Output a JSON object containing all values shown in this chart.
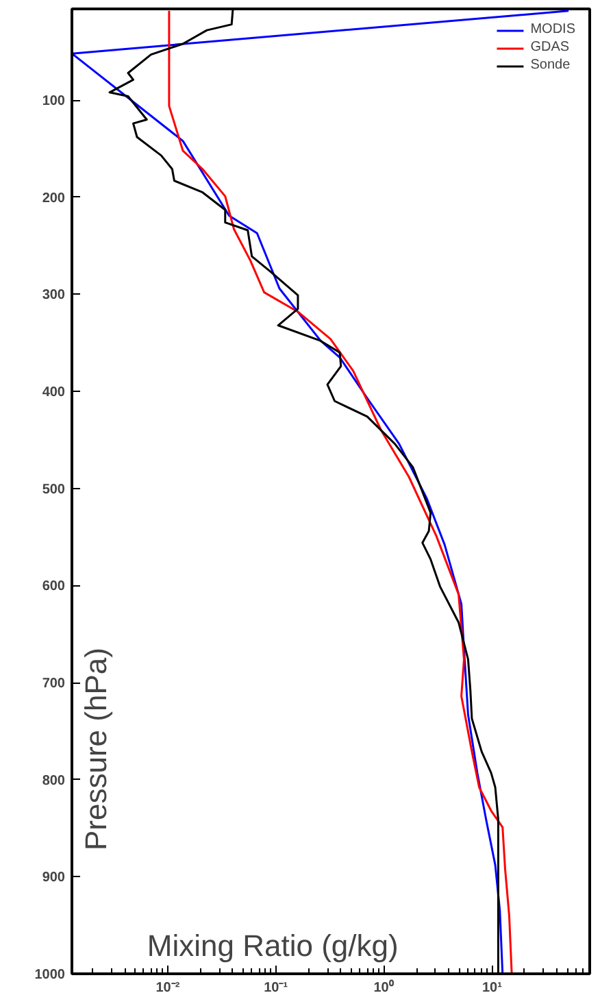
{
  "chart_data": {
    "type": "line",
    "xlabel": "Mixing Ratio (g/kg)",
    "ylabel": "Pressure (hPa)",
    "log": "x",
    "xlim": [
      0.0013,
      80
    ],
    "ylim": [
      1000,
      6
    ],
    "xticks": [
      {
        "value": 0.01,
        "label": "10⁻²"
      },
      {
        "value": 0.1,
        "label": "10⁻¹"
      },
      {
        "value": 1,
        "label": "10⁰"
      },
      {
        "value": 10,
        "label": "10¹"
      }
    ],
    "yticks": [
      100,
      200,
      300,
      400,
      500,
      600,
      700,
      800,
      900,
      1000
    ],
    "grid": false,
    "legend": "top right",
    "line_style": "solid",
    "marker": "none",
    "series": [
      {
        "name": "MODIS",
        "color": "#0000ff",
        "x": [
          51,
          0.0013,
          0.0138,
          0.037,
          0.067,
          0.108,
          0.26,
          0.39,
          0.7,
          1.38,
          2.48,
          3.64,
          5.2,
          5.5,
          6.0,
          7.3,
          8.8,
          10.7,
          11.8,
          12.5
        ],
        "values": [
          8,
          52,
          142,
          219,
          237,
          294,
          348,
          365,
          407,
          454,
          510,
          558,
          619,
          666,
          733,
          793,
          841,
          888,
          935,
          1000
        ]
      },
      {
        "name": "GDAS",
        "color": "#ff0000",
        "x": [
          0.0103,
          0.0103,
          0.0138,
          0.021,
          0.034,
          0.041,
          0.058,
          0.078,
          0.16,
          0.32,
          0.52,
          0.94,
          1.7,
          3.05,
          4.9,
          5.5,
          5.2,
          6.5,
          7.6,
          9.8,
          12.5,
          13.2,
          14.4,
          15.2
        ],
        "values": [
          8,
          106,
          152,
          171,
          199,
          233,
          265,
          298,
          318,
          346,
          379,
          440,
          488,
          549,
          609,
          676,
          714,
          771,
          808,
          832,
          849,
          892,
          940,
          1000
        ]
      },
      {
        "name": "Sonde",
        "color": "#000000",
        "x": [
          0.04,
          0.039,
          0.023,
          0.0138,
          0.007,
          0.0043,
          0.0048,
          0.0029,
          0.0043,
          0.0064,
          0.0048,
          0.0052,
          0.0087,
          0.011,
          0.0115,
          0.021,
          0.034,
          0.034,
          0.055,
          0.06,
          0.09,
          0.16,
          0.16,
          0.105,
          0.26,
          0.39,
          0.4,
          0.3,
          0.35,
          0.7,
          1.26,
          1.85,
          2.7,
          2.6,
          2.27,
          2.7,
          3.3,
          4.9,
          6.0,
          6.3,
          6.5,
          8.0,
          9.8,
          10.7,
          11.4,
          11.4
        ],
        "values": [
          7,
          22,
          28,
          42,
          53,
          72,
          79,
          92,
          96,
          120,
          124,
          138,
          157,
          171,
          183,
          195,
          213,
          226,
          234,
          261,
          277,
          301,
          315,
          332,
          348,
          360,
          374,
          393,
          410,
          426,
          454,
          478,
          525,
          544,
          556,
          573,
          601,
          638,
          676,
          708,
          737,
          771,
          793,
          808,
          841,
          1000
        ]
      }
    ]
  }
}
